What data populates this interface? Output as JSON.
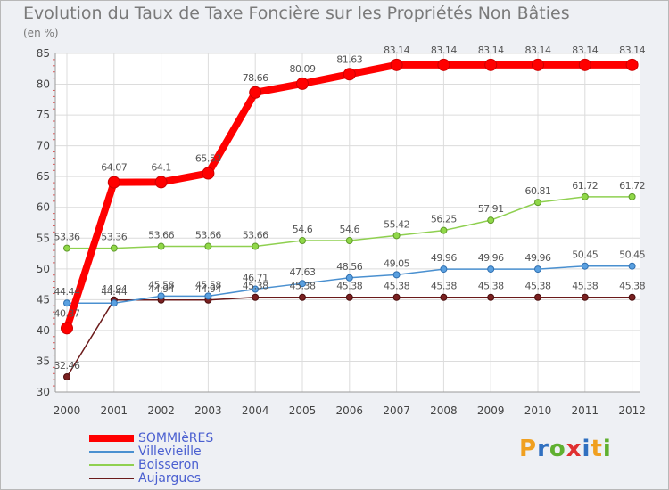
{
  "title": "Evolution du Taux de Taxe Foncière sur les Propriétés Non Bâties",
  "unit": "(en %)",
  "logo": "Proxiti",
  "chart_data": {
    "type": "line",
    "title": "Evolution du Taux de Taxe Foncière sur les Propriétés Non Bâties",
    "ylabel": "(en %)",
    "xlabel": "",
    "x": [
      "2000",
      "2001",
      "2002",
      "2003",
      "2004",
      "2005",
      "2006",
      "2007",
      "2008",
      "2009",
      "2010",
      "2011",
      "2012"
    ],
    "ylim": [
      30,
      85
    ],
    "yticks": [
      30,
      35,
      40,
      45,
      50,
      55,
      60,
      65,
      70,
      75,
      80,
      85
    ],
    "grid": true,
    "legend_position": "bottom-left",
    "series": [
      {
        "name": "SOMMIèRES",
        "color": "#ff0000",
        "values": [
          40.37,
          64.07,
          64.1,
          65.53,
          78.66,
          80.09,
          81.63,
          83.14,
          83.14,
          83.14,
          83.14,
          83.14,
          83.14
        ],
        "labels": [
          "40.37",
          "64.07",
          "64.1",
          "65.53",
          "78.66",
          "80.09",
          "81.63",
          "83.14",
          "83.14",
          "83.14",
          "83.14",
          "83.14",
          "83.14"
        ]
      },
      {
        "name": "Villevieille",
        "color": "#4a90d0",
        "values": [
          44.44,
          44.44,
          45.58,
          45.58,
          46.71,
          47.63,
          48.56,
          49.05,
          49.96,
          49.96,
          49.96,
          50.45,
          50.45
        ],
        "labels": [
          "44.44",
          "44.44",
          "45.58",
          "45.58",
          "46.71",
          "47.63",
          "48.56",
          "49.05",
          "49.96",
          "49.96",
          "49.96",
          "50.45",
          "50.45"
        ]
      },
      {
        "name": "Boisseron",
        "color": "#8fd050",
        "values": [
          53.36,
          53.36,
          53.66,
          53.66,
          53.66,
          54.6,
          54.6,
          55.42,
          56.25,
          57.91,
          60.81,
          61.72,
          61.72
        ],
        "labels": [
          "53.36",
          "53.36",
          "53.66",
          "53.66",
          "53.66",
          "54.6",
          "54.6",
          "55.42",
          "56.25",
          "57.91",
          "60.81",
          "61.72",
          "61.72"
        ]
      },
      {
        "name": "Aujargues",
        "color": "#6b1a1a",
        "values": [
          32.46,
          44.94,
          44.94,
          44.94,
          45.38,
          45.38,
          45.38,
          45.38,
          45.38,
          45.38,
          45.38,
          45.38,
          45.38
        ],
        "labels": [
          "32.46",
          "44.94",
          "44.94",
          "44.94",
          "45.38",
          "45.38",
          "45.38",
          "45.38",
          "45.38",
          "45.38",
          "45.38",
          "45.38",
          "45.38"
        ]
      }
    ]
  }
}
